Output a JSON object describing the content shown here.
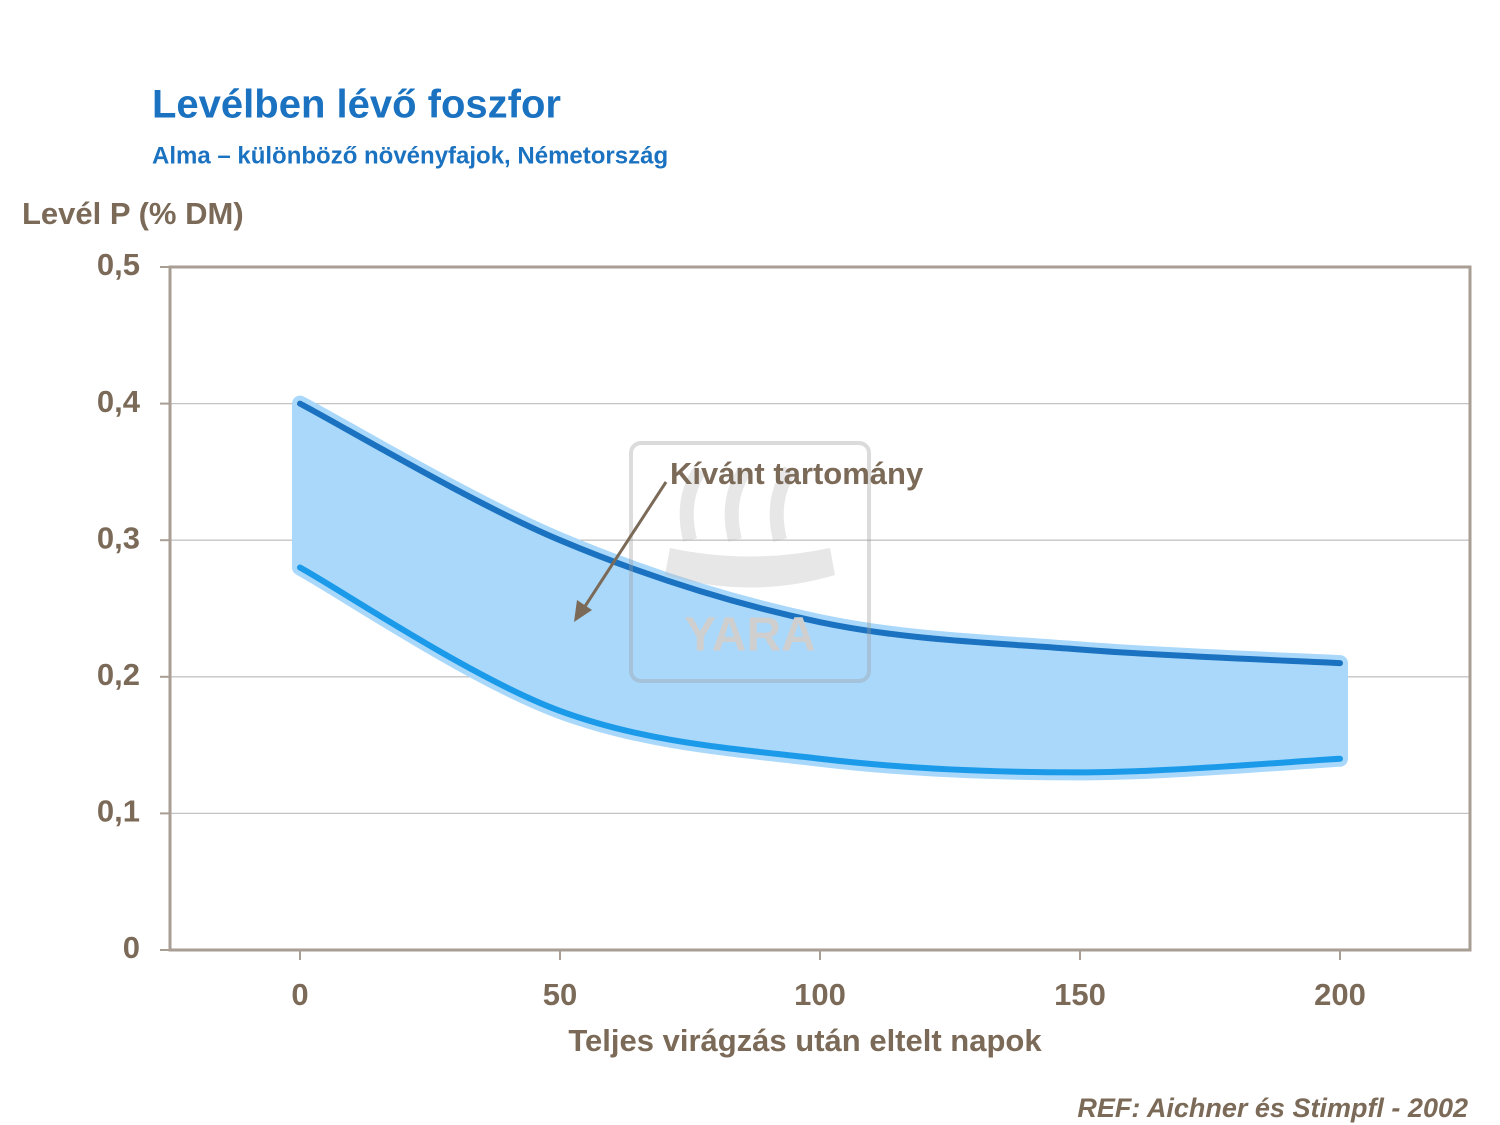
{
  "chart_data": {
    "type": "band",
    "title": "Levélben lévő foszfor",
    "subtitle": "Alma – különböző növényfajok, Németország",
    "y_label": "Levél P (% DM)",
    "x_label": "Teljes virágzás után eltelt napok",
    "annotation": "Kívánt tartomány",
    "source": "REF: Aichner és Stimpfl - 2002",
    "watermark": "YARA",
    "x": [
      0,
      50,
      100,
      150,
      200
    ],
    "series": [
      {
        "color": "#1a72c0",
        "values": [
          0.4,
          0.3,
          0.24,
          0.22,
          0.21
        ]
      },
      {
        "color": "#1b9aea",
        "values": [
          0.28,
          0.175,
          0.14,
          0.13,
          0.14
        ]
      }
    ],
    "band_color": "#a9d8fb",
    "xlim": [
      -25,
      225
    ],
    "xticks": [
      0,
      50,
      100,
      150,
      200
    ],
    "ylim": [
      0,
      0.5
    ],
    "yticks": [
      0,
      {
        "value": 0.1,
        "label": "0,1"
      },
      {
        "value": 0.2,
        "label": "0,2"
      },
      {
        "value": 0.3,
        "label": "0,3"
      },
      {
        "value": 0.4,
        "label": "0,4"
      },
      {
        "value": 0.5,
        "label": "0,5"
      }
    ],
    "grid": true
  }
}
